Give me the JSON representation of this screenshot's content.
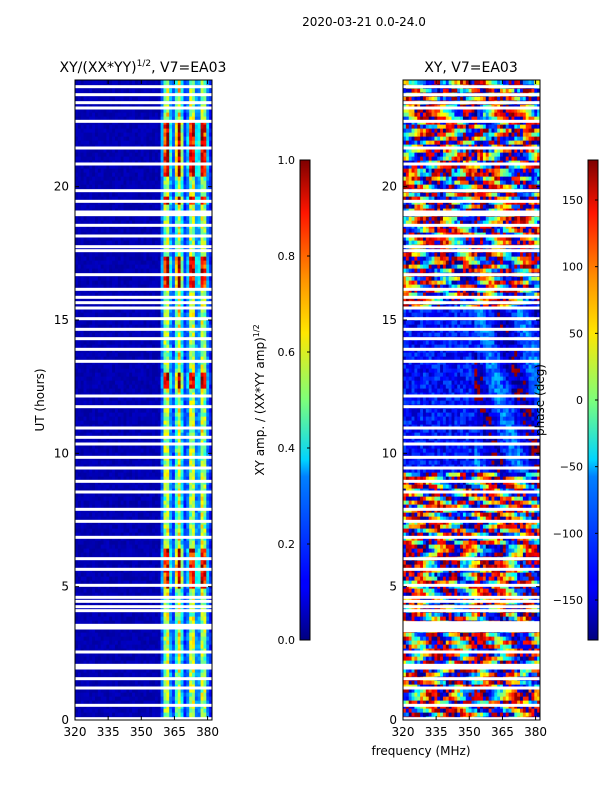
{
  "figure": {
    "suptitle": "2020-03-21 0.0-24.0",
    "shared_xlabel": "frequency (MHz)"
  },
  "colormap": "jet",
  "chart_data": [
    {
      "type": "heatmap",
      "panel": "left",
      "title_main": "XY/(XX*YY)",
      "title_exp": "1/2",
      "title_suffix": ", V7=EA03",
      "ylabel": "UT (hours)",
      "x_range": [
        320,
        382
      ],
      "y_range": [
        0,
        24
      ],
      "xticks": [
        320,
        335,
        350,
        365,
        380
      ],
      "xtick_labels": [
        "320",
        "335",
        "350",
        "365",
        "380"
      ],
      "yticks": [
        0,
        5,
        10,
        15,
        20
      ],
      "ytick_labels": [
        "0",
        "5",
        "10",
        "15",
        "20"
      ],
      "description_values": {
        "low_freq_region_MHz": [
          320,
          359
        ],
        "low_freq_value": 0.03,
        "high_freq_region_MHz": [
          359,
          382
        ],
        "high_freq_channel_peaks_MHz": [
          361.5,
          367,
          373,
          378
        ],
        "high_value_hour_bands": [
          [
            4.9,
            6.4
          ],
          [
            12.4,
            13.0
          ],
          [
            16.2,
            17.4
          ],
          [
            19.3,
            19.6
          ],
          [
            20.4,
            22.5
          ]
        ]
      },
      "colorbar": {
        "label_main": "XY amp. / (XX*YY amp)",
        "label_exp": "1/2",
        "range": [
          0.0,
          1.0
        ],
        "ticks": [
          0.0,
          0.2,
          0.4,
          0.6,
          0.8,
          1.0
        ],
        "tick_labels": [
          "0.0",
          "0.2",
          "0.4",
          "0.6",
          "0.8",
          "1.0"
        ]
      }
    },
    {
      "type": "heatmap",
      "panel": "right",
      "title": "XY, V7=EA03",
      "x_range": [
        320,
        382
      ],
      "y_range": [
        0,
        24
      ],
      "xticks": [
        320,
        335,
        350,
        365,
        380
      ],
      "xtick_labels": [
        "320",
        "335",
        "350",
        "365",
        "380"
      ],
      "yticks": [
        0,
        5,
        10,
        15,
        20
      ],
      "ytick_labels": [
        "0",
        "5",
        "10",
        "15",
        "20"
      ],
      "description_values": {
        "phase_blue_hour_band": [
          9.3,
          15.4
        ],
        "phase_blue_value_deg": -130
      },
      "colorbar": {
        "label": "phase (deg)",
        "range": [
          -180,
          180
        ],
        "ticks": [
          -150,
          -100,
          -50,
          0,
          50,
          100,
          150
        ],
        "tick_labels": [
          "−150",
          "−100",
          "−50",
          "0",
          "50",
          "100",
          "150"
        ]
      }
    }
  ],
  "gap_hours": [
    0.05,
    0.55,
    1.2,
    1.55,
    1.95,
    2.05,
    2.55,
    3.45,
    3.5,
    3.55,
    4.1,
    4.25,
    4.45,
    4.6,
    5.05,
    5.65,
    6.05,
    6.85,
    7.45,
    7.9,
    8.55,
    8.95,
    9.45,
    9.85,
    10.35,
    10.6,
    10.95,
    11.75,
    12.15,
    13.45,
    13.9,
    14.3,
    14.65,
    15.05,
    15.45,
    15.65,
    15.85,
    16.15,
    16.7,
    17.6,
    17.75,
    18.15,
    18.55,
    18.95,
    19.05,
    19.45,
    19.85,
    20.85,
    21.45,
    22.45,
    22.95,
    23.15,
    23.45,
    23.75
  ],
  "gap_hours_right_only": [
    3.35,
    3.65
  ]
}
